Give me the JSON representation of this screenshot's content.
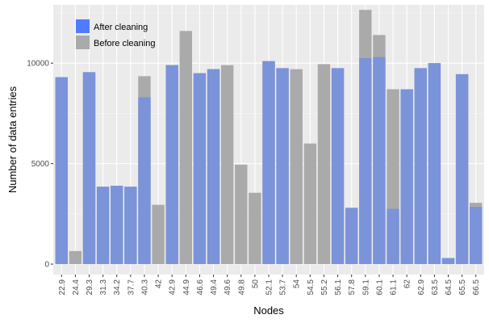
{
  "chart_data": {
    "type": "bar",
    "xlabel": "Nodes",
    "ylabel": "Number of data entries",
    "ylim": [
      0,
      12900
    ],
    "yticks": [
      0,
      5000,
      10000
    ],
    "grid": true,
    "legend_position": "top-left",
    "categories": [
      "22.9",
      "24.4",
      "29.3",
      "31.3",
      "34.2",
      "37.7",
      "40.3",
      "42",
      "42.9",
      "44.9",
      "46.6",
      "49.4",
      "49.6",
      "49.8",
      "50",
      "52.1",
      "53.7",
      "54",
      "54.5",
      "55.2",
      "56.1",
      "57.8",
      "59.1",
      "60.1",
      "61.1",
      "62",
      "62.9",
      "63.5",
      "64.5",
      "65.5",
      "66.5"
    ],
    "series": [
      {
        "name": "After cleaning",
        "color": "#7b93d9",
        "legend_color": "#4f7cff",
        "values": [
          9300,
          0,
          9550,
          3850,
          3900,
          3850,
          8300,
          0,
          9900,
          0,
          9500,
          9700,
          0,
          0,
          0,
          10100,
          9750,
          0,
          0,
          0,
          9750,
          2800,
          10250,
          10300,
          2750,
          8700,
          9750,
          10000,
          300,
          9450,
          2850
        ]
      },
      {
        "name": "Before cleaning",
        "color": "#aaaaaa",
        "values": [
          9300,
          650,
          9550,
          3850,
          3900,
          3850,
          9350,
          2950,
          9900,
          11600,
          9500,
          9700,
          9900,
          4950,
          3550,
          10100,
          9750,
          9700,
          6000,
          9950,
          9750,
          2800,
          12650,
          11400,
          8700,
          8700,
          9750,
          10000,
          300,
          9450,
          3050
        ]
      }
    ]
  }
}
